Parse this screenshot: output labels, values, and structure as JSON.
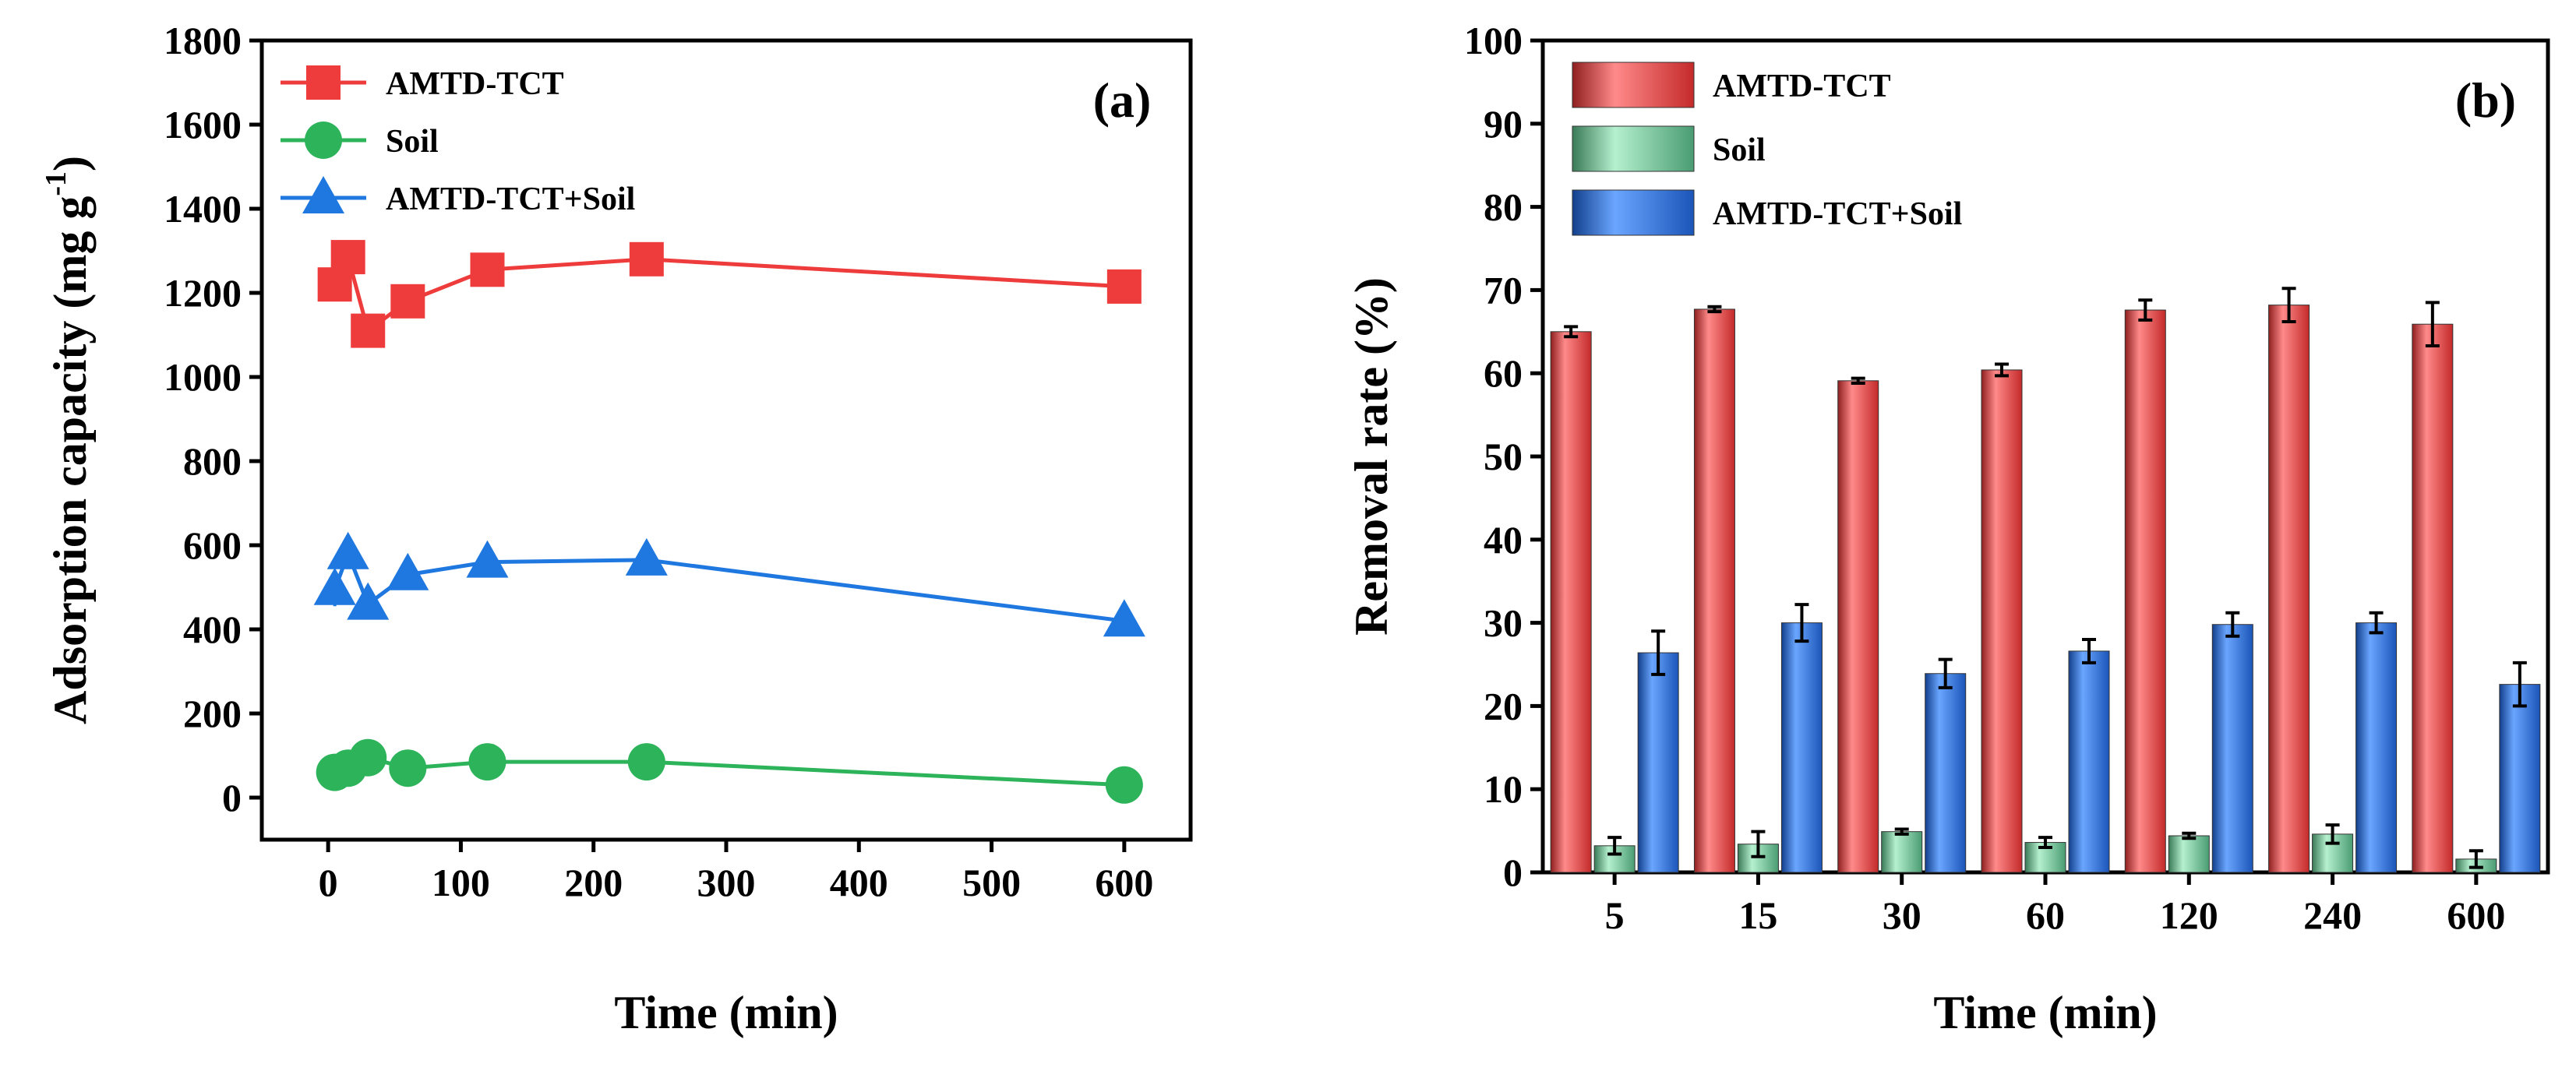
{
  "chart_data": [
    {
      "type": "line",
      "panel_label": "(a)",
      "xlabel": "Time (min)",
      "ylabel_main": "Adsorption capacity (mg g",
      "ylabel_sup": "-1",
      "ylabel_close": ")",
      "xlim": [
        -50,
        650
      ],
      "ylim": [
        -100,
        1800
      ],
      "xticks": [
        0,
        100,
        200,
        300,
        400,
        500,
        600
      ],
      "yticks": [
        0,
        200,
        400,
        600,
        800,
        1000,
        1200,
        1400,
        1600,
        1800
      ],
      "legend_position": "top-left",
      "series": [
        {
          "name": "AMTD-TCT",
          "color": "#ee3b3b",
          "marker": "square",
          "x": [
            5,
            15,
            30,
            60,
            120,
            240,
            600
          ],
          "y": [
            1220,
            1285,
            1110,
            1180,
            1255,
            1280,
            1215
          ]
        },
        {
          "name": "Soil",
          "color": "#2db35a",
          "marker": "circle",
          "x": [
            5,
            15,
            30,
            60,
            120,
            240,
            600
          ],
          "y": [
            60,
            70,
            95,
            70,
            85,
            85,
            30
          ]
        },
        {
          "name": "AMTD-TCT+Soil",
          "color": "#1f77e0",
          "marker": "triangle",
          "x": [
            5,
            15,
            30,
            60,
            120,
            240,
            600
          ],
          "y": [
            495,
            580,
            460,
            530,
            560,
            565,
            420
          ],
          "err": [
            40,
            30,
            30,
            25,
            20,
            20,
            35
          ]
        }
      ]
    },
    {
      "type": "bar",
      "panel_label": "(b)",
      "xlabel": "Time (min)",
      "ylabel": "Removal rate (%)",
      "ylim": [
        0,
        100
      ],
      "yticks": [
        0,
        10,
        20,
        30,
        40,
        50,
        60,
        70,
        80,
        90,
        100
      ],
      "categories": [
        "5",
        "15",
        "30",
        "60",
        "120",
        "240",
        "600"
      ],
      "legend_position": "top-left",
      "series": [
        {
          "name": "AMTD-TCT",
          "color": "#e84545",
          "values": [
            65.0,
            67.7,
            59.1,
            60.4,
            67.6,
            68.2,
            65.9
          ],
          "err": [
            0.6,
            0.3,
            0.3,
            0.7,
            1.2,
            2.0,
            2.6
          ]
        },
        {
          "name": "Soil",
          "color": "#6fcf9f",
          "values": [
            3.2,
            3.4,
            4.9,
            3.6,
            4.4,
            4.6,
            1.6
          ],
          "err": [
            1.0,
            1.5,
            0.3,
            0.6,
            0.3,
            1.1,
            1.0
          ]
        },
        {
          "name": "AMTD-TCT+Soil",
          "color": "#2e73d8",
          "values": [
            26.4,
            30.0,
            23.9,
            26.6,
            29.8,
            30.0,
            22.6
          ],
          "err": [
            2.6,
            2.2,
            1.7,
            1.4,
            1.4,
            1.2,
            2.6
          ]
        }
      ]
    }
  ]
}
